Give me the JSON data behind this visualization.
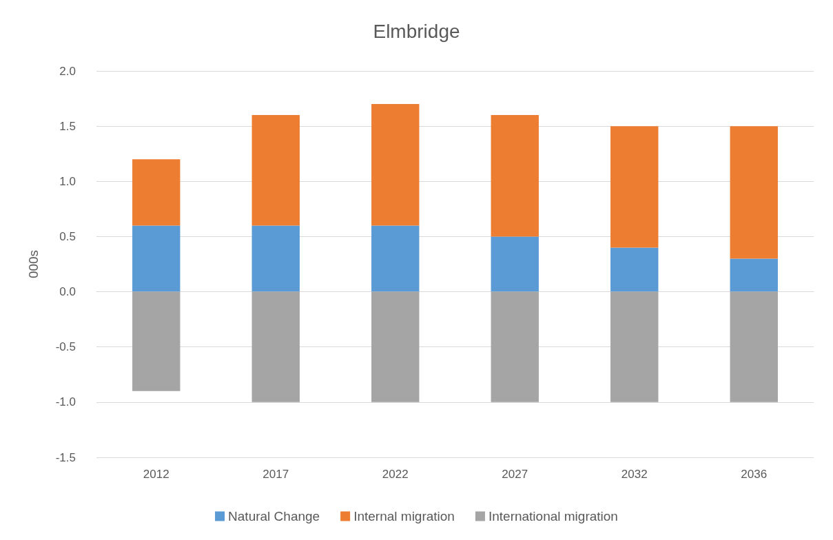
{
  "chart_data": {
    "type": "bar",
    "title": "Elmbridge",
    "ylabel": "000s",
    "categories": [
      "2012",
      "2017",
      "2022",
      "2027",
      "2032",
      "2036"
    ],
    "stacked": true,
    "series": [
      {
        "name": "Natural Change",
        "color": "#5b9bd5",
        "values": [
          0.6,
          0.6,
          0.6,
          0.5,
          0.4,
          0.3
        ]
      },
      {
        "name": "Internal migration",
        "color": "#ed7d31",
        "values": [
          0.6,
          1.0,
          1.1,
          1.1,
          1.1,
          1.2
        ]
      },
      {
        "name": "International migration",
        "color": "#a5a5a5",
        "values": [
          -0.9,
          -1.0,
          -1.0,
          -1.0,
          -1.0,
          -1.0
        ]
      }
    ],
    "ylim": [
      -1.5,
      2.0
    ],
    "yticks": [
      -1.5,
      {
        "value": -1,
        "label": "-1.0"
      },
      -0.5,
      {
        "value": 0,
        "label": "0.0"
      },
      0.5,
      {
        "value": 1,
        "label": "1.0"
      },
      1.5,
      {
        "value": 2,
        "label": "2.0"
      }
    ],
    "grid": "y",
    "legend": "bottom"
  }
}
